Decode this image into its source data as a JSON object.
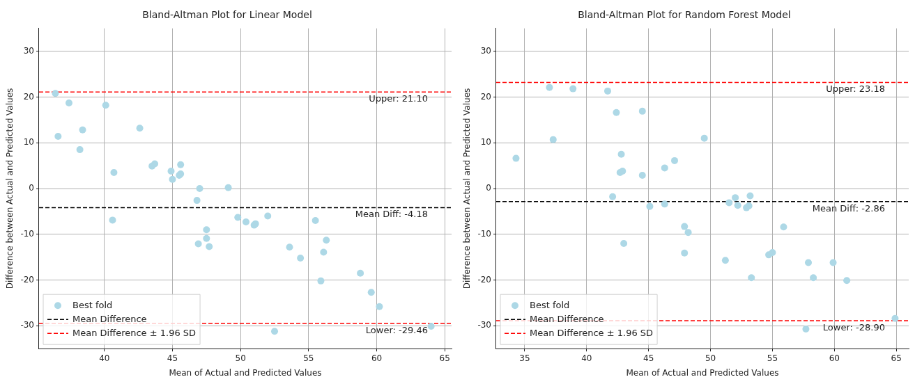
{
  "chart_data": [
    {
      "type": "scatter",
      "title": "Bland-Altman Plot for Linear Model",
      "xlabel": "Mean of Actual and Predicted Values",
      "ylabel": "Difference between Actual and Predicted Values",
      "xlim": [
        35.2,
        65.5
      ],
      "ylim": [
        -35,
        35
      ],
      "xticks": [
        40,
        45,
        50,
        55,
        60,
        65
      ],
      "yticks": [
        -30,
        -20,
        -10,
        0,
        10,
        20,
        30
      ],
      "grid": true,
      "legend": "bottom left",
      "series": [
        {
          "name": "Best fold",
          "marker": "circle",
          "color": "#add8e6",
          "x": [
            36.4,
            36.6,
            37.4,
            38.2,
            38.4,
            40.1,
            40.6,
            40.7,
            42.6,
            43.5,
            43.7,
            44.9,
            45.0,
            45.5,
            45.6,
            45.6,
            46.8,
            47.0,
            46.9,
            47.5,
            47.5,
            47.7,
            49.1,
            49.8,
            50.4,
            51.0,
            51.1,
            52.0,
            52.5,
            53.6,
            54.4,
            55.5,
            55.9,
            56.1,
            56.3,
            58.8,
            59.6,
            60.2,
            64.0
          ],
          "values": [
            20.8,
            11.4,
            18.7,
            8.5,
            12.8,
            18.2,
            -6.9,
            3.5,
            13.2,
            4.9,
            5.4,
            3.8,
            2.0,
            2.9,
            5.2,
            3.2,
            -2.6,
            0.0,
            -12.1,
            -9.0,
            -10.9,
            -12.7,
            0.2,
            -6.3,
            -7.3,
            -8.0,
            -7.7,
            -6.0,
            -31.2,
            -12.8,
            -15.2,
            -7.0,
            -20.2,
            -13.9,
            -11.3,
            -18.5,
            -22.7,
            -25.8,
            -30.1
          ]
        },
        {
          "name": "Mean Difference",
          "type": "line",
          "color": "#000000",
          "line_style": "dashed",
          "x": [
            35.2,
            65.5
          ],
          "values": [
            -4.18,
            -4.18
          ]
        },
        {
          "name": "Mean Difference ± 1.96 SD",
          "type": "line",
          "color": "#ff0000",
          "line_style": "dashed",
          "x": [
            35.2,
            65.5
          ],
          "values": [
            21.1,
            21.1
          ]
        },
        {
          "type": "line",
          "color": "#ff0000",
          "line_style": "dashed",
          "x": [
            35.2,
            65.5
          ],
          "values": [
            -29.46,
            -29.46
          ]
        }
      ],
      "annotations": [
        {
          "text": "Upper: 21.10",
          "y": 21.1
        },
        {
          "text": "Mean Diff: -4.18",
          "y": -4.18
        },
        {
          "text": "Lower: -29.46",
          "y": -29.46
        }
      ]
    },
    {
      "type": "scatter",
      "title": "Bland-Altman Plot for Random Forest Model",
      "xlabel": "Mean of Actual and Predicted Values",
      "ylabel": "Difference between Actual and Predicted Values",
      "xlim": [
        32.7,
        66.0
      ],
      "ylim": [
        -35,
        35
      ],
      "xticks": [
        35,
        40,
        45,
        50,
        55,
        60,
        65
      ],
      "yticks": [
        -30,
        -20,
        -10,
        0,
        10,
        20,
        30
      ],
      "grid": true,
      "legend": "bottom left",
      "series": [
        {
          "name": "Best fold",
          "marker": "circle",
          "color": "#add8e6",
          "x": [
            34.3,
            37.0,
            37.3,
            38.9,
            41.7,
            42.1,
            42.4,
            42.7,
            42.8,
            42.9,
            43.0,
            44.5,
            44.5,
            45.1,
            46.3,
            46.3,
            47.1,
            47.9,
            47.9,
            48.2,
            49.5,
            51.2,
            51.5,
            52.0,
            52.2,
            52.9,
            53.1,
            53.2,
            53.3,
            54.7,
            55.0,
            55.9,
            57.7,
            57.9,
            58.3,
            59.9,
            61.0,
            64.9
          ],
          "values": [
            6.6,
            22.1,
            10.7,
            21.8,
            21.3,
            -1.8,
            16.6,
            3.5,
            7.5,
            3.8,
            -12.0,
            16.9,
            2.9,
            -3.9,
            4.5,
            -3.4,
            6.1,
            -8.3,
            -14.1,
            -9.6,
            11.0,
            -15.7,
            -3.1,
            -2.0,
            -3.7,
            -4.2,
            -3.8,
            -1.6,
            -19.5,
            -14.5,
            -14.0,
            -8.4,
            -30.7,
            -16.2,
            -19.5,
            -16.2,
            -20.1,
            -28.4
          ]
        },
        {
          "name": "Mean Difference",
          "type": "line",
          "color": "#000000",
          "line_style": "dashed",
          "x": [
            32.7,
            66.0
          ],
          "values": [
            -2.86,
            -2.86
          ]
        },
        {
          "name": "Mean Difference ± 1.96 SD",
          "type": "line",
          "color": "#ff0000",
          "line_style": "dashed",
          "x": [
            32.7,
            66.0
          ],
          "values": [
            23.18,
            23.18
          ]
        },
        {
          "type": "line",
          "color": "#ff0000",
          "line_style": "dashed",
          "x": [
            32.7,
            66.0
          ],
          "values": [
            -28.9,
            -28.9
          ]
        }
      ],
      "annotations": [
        {
          "text": "Upper: 23.18",
          "y": 23.18
        },
        {
          "text": "Mean Diff: -2.86",
          "y": -2.86
        },
        {
          "text": "Lower: -28.90",
          "y": -28.9
        }
      ]
    }
  ]
}
